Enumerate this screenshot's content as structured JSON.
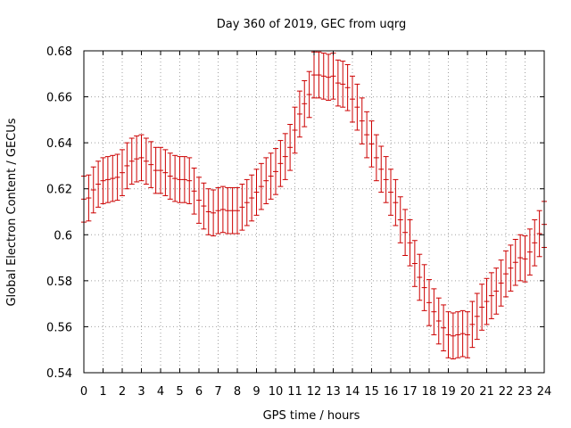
{
  "chart_data": {
    "type": "scatter",
    "title": "Day 360 of 2019, GEC from uqrg",
    "xlabel": "GPS time / hours",
    "ylabel": "Global Electron Content / GECUs",
    "xlim": [
      0,
      24
    ],
    "ylim": [
      0.54,
      0.68
    ],
    "grid": true,
    "x_ticks": [
      0,
      1,
      2,
      3,
      4,
      5,
      6,
      7,
      8,
      9,
      10,
      11,
      12,
      13,
      14,
      15,
      16,
      17,
      18,
      19,
      20,
      21,
      22,
      23,
      24
    ],
    "y_ticks": [
      0.54,
      0.56,
      0.58,
      0.6,
      0.62,
      0.64,
      0.66,
      0.68
    ],
    "y_tick_labels": [
      "0.54",
      "0.56",
      "0.58",
      "0.6",
      "0.62",
      "0.64",
      "0.66",
      "0.68"
    ],
    "error": 0.01,
    "colors": {
      "series": "#cc0000",
      "grid": "#a0a0a0",
      "axis": "#000000"
    },
    "x": [
      0,
      0.25,
      0.5,
      0.75,
      1,
      1.25,
      1.5,
      1.75,
      2,
      2.25,
      2.5,
      2.75,
      3,
      3.25,
      3.5,
      3.75,
      4,
      4.25,
      4.5,
      4.75,
      5,
      5.25,
      5.5,
      5.75,
      6,
      6.25,
      6.5,
      6.75,
      7,
      7.25,
      7.5,
      7.75,
      8,
      8.25,
      8.5,
      8.75,
      9,
      9.25,
      9.5,
      9.75,
      10,
      10.25,
      10.5,
      10.75,
      11,
      11.25,
      11.5,
      11.75,
      12,
      12.25,
      12.5,
      12.75,
      13,
      13.25,
      13.5,
      13.75,
      14,
      14.25,
      14.5,
      14.75,
      15,
      15.25,
      15.5,
      15.75,
      16,
      16.25,
      16.5,
      16.75,
      17,
      17.25,
      17.5,
      17.75,
      18,
      18.25,
      18.5,
      18.75,
      19,
      19.25,
      19.5,
      19.75,
      20,
      20.25,
      20.5,
      20.75,
      21,
      21.25,
      21.5,
      21.75,
      22,
      22.25,
      22.5,
      22.75,
      23,
      23.25,
      23.5,
      23.75,
      24
    ],
    "values": [
      0.6155,
      0.616,
      0.6195,
      0.622,
      0.6235,
      0.624,
      0.6245,
      0.625,
      0.627,
      0.63,
      0.632,
      0.633,
      0.6335,
      0.632,
      0.6305,
      0.628,
      0.628,
      0.627,
      0.6255,
      0.6245,
      0.624,
      0.624,
      0.6235,
      0.619,
      0.615,
      0.6125,
      0.61,
      0.6095,
      0.6105,
      0.611,
      0.6105,
      0.6105,
      0.6105,
      0.612,
      0.614,
      0.616,
      0.6185,
      0.621,
      0.6235,
      0.6255,
      0.6275,
      0.631,
      0.634,
      0.638,
      0.6455,
      0.6525,
      0.657,
      0.661,
      0.6695,
      0.6695,
      0.669,
      0.6685,
      0.669,
      0.666,
      0.6655,
      0.664,
      0.659,
      0.6555,
      0.6495,
      0.6435,
      0.6395,
      0.6335,
      0.6285,
      0.624,
      0.6185,
      0.614,
      0.6065,
      0.601,
      0.5965,
      0.5875,
      0.5815,
      0.577,
      0.5705,
      0.5665,
      0.5625,
      0.5595,
      0.5565,
      0.556,
      0.5565,
      0.557,
      0.5565,
      0.561,
      0.5645,
      0.5685,
      0.571,
      0.5735,
      0.5755,
      0.579,
      0.583,
      0.5855,
      0.588,
      0.59,
      0.5895,
      0.5925,
      0.5965,
      0.6005,
      0.6045
    ]
  }
}
